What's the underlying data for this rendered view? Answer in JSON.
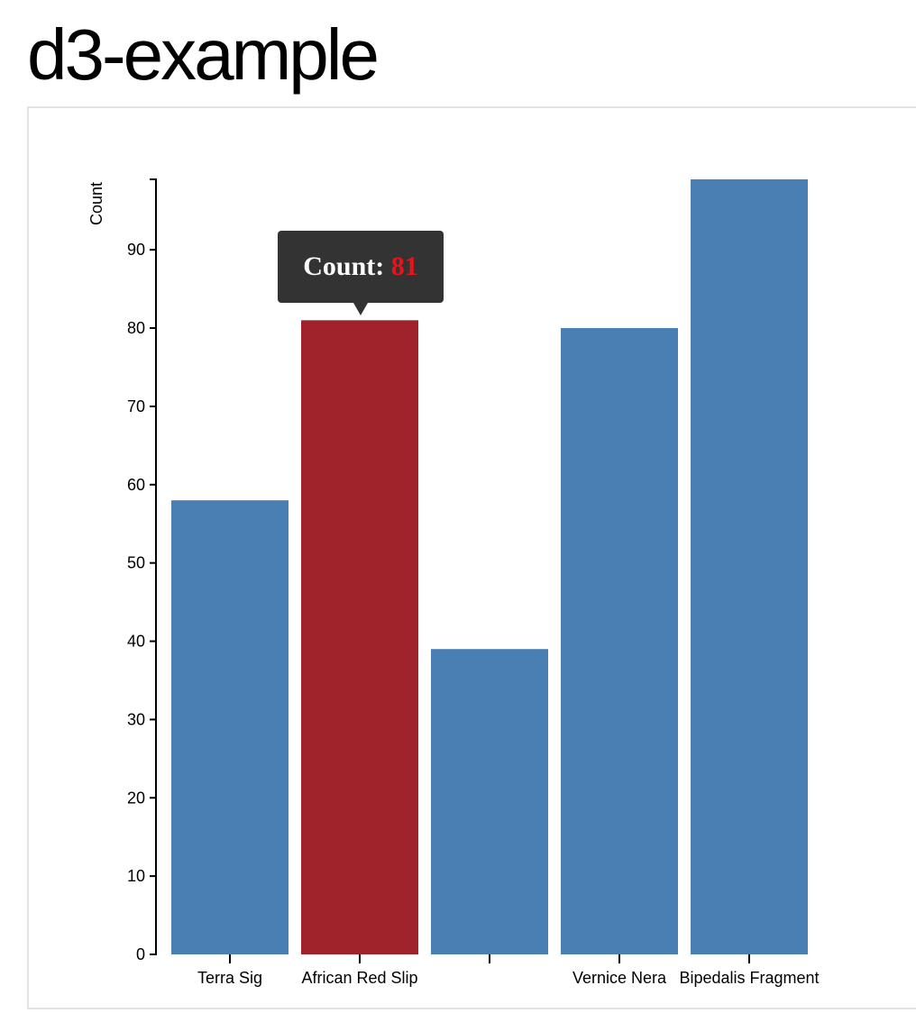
{
  "page": {
    "title": "d3-example"
  },
  "tooltip": {
    "label": "Count:",
    "value": "81",
    "value_color": "#e8141c"
  },
  "chart_data": {
    "type": "bar",
    "categories": [
      "Terra Sig",
      "African Red Slip",
      "",
      "Vernice Nera",
      "Bipedalis Fragment"
    ],
    "values": [
      58,
      81,
      39,
      80,
      99
    ],
    "highlighted_index": 1,
    "xlabel": "",
    "ylabel": "Count",
    "ylim": [
      0,
      99
    ],
    "yticks": [
      0,
      10,
      20,
      30,
      40,
      50,
      60,
      70,
      80,
      90
    ],
    "bar_color": "#4a7fb3",
    "highlight_color": "#a0222b",
    "grid": false,
    "legend": "none"
  }
}
